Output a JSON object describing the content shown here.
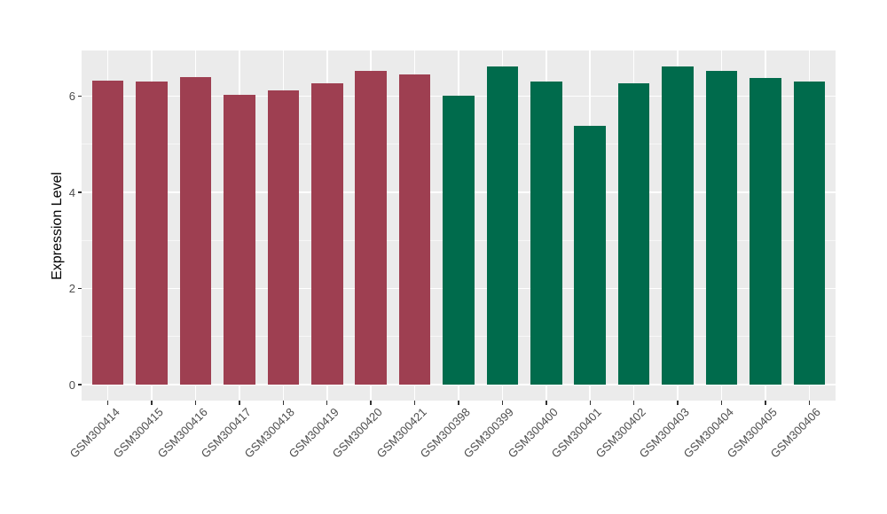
{
  "chart_data": {
    "type": "bar",
    "title": "",
    "xlabel": "",
    "ylabel": "Expression Level",
    "categories": [
      "GSM300414",
      "GSM300415",
      "GSM300416",
      "GSM300417",
      "GSM300418",
      "GSM300419",
      "GSM300420",
      "GSM300421",
      "GSM300398",
      "GSM300399",
      "GSM300400",
      "GSM300401",
      "GSM300402",
      "GSM300403",
      "GSM300404",
      "GSM300405",
      "GSM300406"
    ],
    "values": [
      6.32,
      6.3,
      6.4,
      6.03,
      6.12,
      6.26,
      6.52,
      6.46,
      6.01,
      6.62,
      6.3,
      5.38,
      6.26,
      6.62,
      6.53,
      6.38,
      6.3
    ],
    "bar_groups": [
      "A",
      "A",
      "A",
      "A",
      "A",
      "A",
      "A",
      "A",
      "B",
      "B",
      "B",
      "B",
      "B",
      "B",
      "B",
      "B",
      "B"
    ],
    "group_colors": {
      "A": "#9E3F51",
      "B": "#006B4C"
    },
    "yticks": [
      0,
      2,
      4,
      6
    ],
    "minor_yticks": [
      1,
      3,
      5
    ],
    "ylim": [
      -0.33,
      6.96
    ],
    "grid": "on",
    "legend": "none",
    "bar_width_fraction": 0.72,
    "panel_bg": "#EBEBEB",
    "gridline_color": "#FFFFFF",
    "axis_text_color": "#4D4D4D",
    "tick_color": "#333333"
  }
}
